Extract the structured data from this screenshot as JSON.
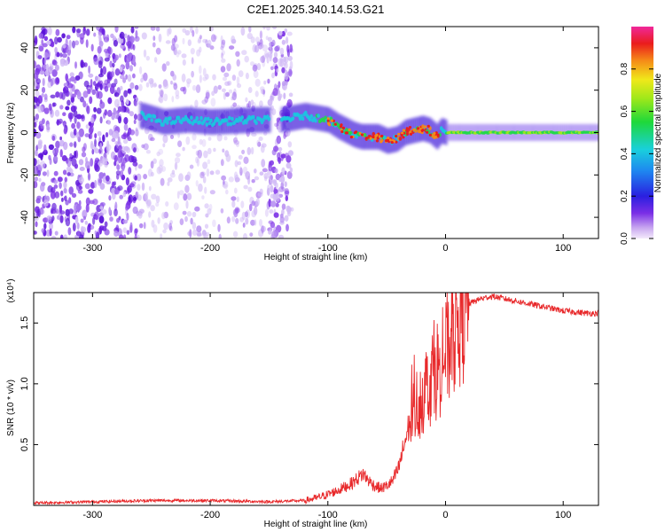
{
  "title": "C2E1.2025.340.14.53.G21",
  "chart_data": [
    {
      "type": "heatmap",
      "title": "C2E1.2025.340.14.53.G21",
      "xlabel": "Height of straight line (km)",
      "ylabel": "Frequency (Hz)",
      "xlim": [
        -350,
        130
      ],
      "ylim": [
        -50,
        50
      ],
      "xticks": [
        -300,
        -200,
        -100,
        0,
        100
      ],
      "xtick_labels": [
        "-300",
        "-200",
        "-100",
        "0",
        "100"
      ],
      "yticks": [
        -40,
        -20,
        0,
        20,
        40
      ],
      "ytick_labels": [
        "-40",
        "-20",
        "0",
        "20",
        "40"
      ],
      "noise_region_end_km": -130,
      "gap_region_km": [
        -262,
        -150
      ],
      "signal_track": {
        "x": [
          -258,
          -240,
          -220,
          -200,
          -160,
          -140,
          -120,
          -110,
          -100,
          -92,
          -85,
          -78,
          -72,
          -65,
          -58,
          -50,
          -42,
          -35,
          -28,
          -20,
          -14,
          -8,
          -4,
          0,
          20,
          60,
          100,
          130
        ],
        "y": [
          8,
          5,
          6,
          5,
          6,
          6,
          8,
          7,
          6,
          3,
          1,
          -1,
          -2,
          -2,
          -2,
          -4,
          -3,
          0,
          1,
          2,
          1,
          -2,
          1,
          0,
          0,
          0,
          0,
          0
        ]
      },
      "colorbar": {
        "label": "Normalized spectral amplitude",
        "range": [
          0,
          1
        ],
        "ticks": [
          0.0,
          0.2,
          0.4,
          0.6,
          0.8
        ],
        "tick_labels": [
          "0.0",
          "0.2",
          "0.4",
          "0.6",
          "0.8"
        ]
      }
    },
    {
      "type": "line",
      "xlabel": "Height of straight line (km)",
      "ylabel": "SNR (10 * v/v)",
      "y_multiplier": "(x10⁴)",
      "xlim": [
        -350,
        130
      ],
      "ylim": [
        0,
        1.75
      ],
      "xticks": [
        -300,
        -200,
        -100,
        0,
        100
      ],
      "xtick_labels": [
        "-300",
        "-200",
        "-100",
        "0",
        "100"
      ],
      "yticks": [
        0.5,
        1.0,
        1.5
      ],
      "ytick_labels": [
        "0.5",
        "1.0",
        "1.5"
      ],
      "series": [
        {
          "name": "SNR",
          "color": "#e8292b",
          "x": [
            -350,
            -300,
            -250,
            -200,
            -150,
            -120,
            -110,
            -100,
            -90,
            -80,
            -75,
            -70,
            -65,
            -60,
            -55,
            -50,
            -45,
            -40,
            -35,
            -30,
            -25,
            -20,
            -15,
            -10,
            -5,
            0,
            5,
            10,
            20,
            30,
            40,
            50,
            60,
            70,
            80,
            90,
            100,
            110,
            120,
            130
          ],
          "y": [
            0.02,
            0.03,
            0.04,
            0.04,
            0.03,
            0.04,
            0.06,
            0.09,
            0.13,
            0.18,
            0.22,
            0.26,
            0.2,
            0.16,
            0.14,
            0.16,
            0.2,
            0.3,
            0.5,
            0.7,
            0.82,
            0.9,
            1.0,
            1.1,
            1.15,
            1.25,
            1.35,
            1.5,
            1.66,
            1.7,
            1.72,
            1.7,
            1.68,
            1.66,
            1.64,
            1.62,
            1.6,
            1.59,
            1.58,
            1.58
          ]
        }
      ]
    }
  ]
}
